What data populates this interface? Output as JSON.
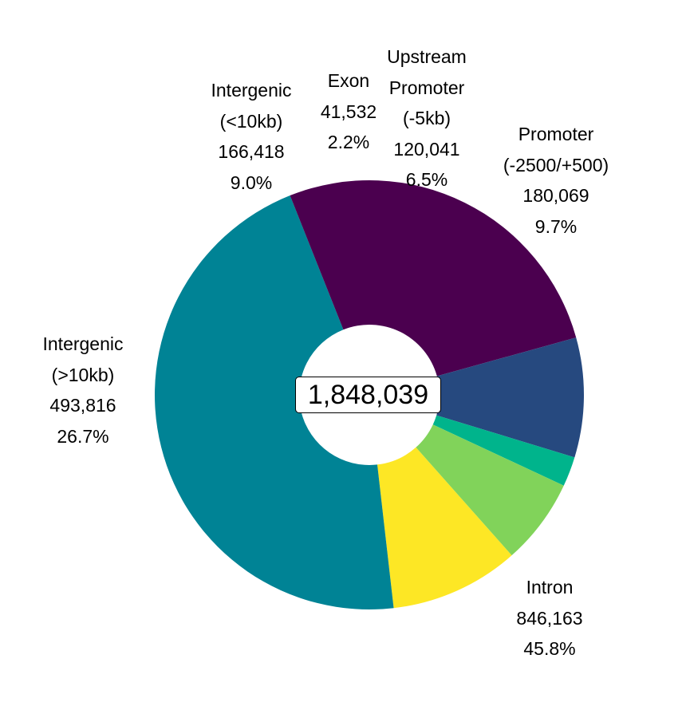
{
  "chart_data": {
    "type": "donut",
    "total_label": "1,848,039",
    "slices": [
      {
        "id": "promoter",
        "lines": [
          "Promoter",
          "(-2500/+500)"
        ],
        "count": "180,069",
        "percent": "9.7%",
        "value": 180069,
        "color": "#fde725"
      },
      {
        "id": "intron",
        "lines": [
          "Intron"
        ],
        "count": "846,163",
        "percent": "45.8%",
        "value": 846163,
        "color": "#008395"
      },
      {
        "id": "intergenic-far",
        "lines": [
          "Intergenic",
          "(>10kb)"
        ],
        "count": "493,816",
        "percent": "26.7%",
        "value": 493816,
        "color": "#4b004f"
      },
      {
        "id": "intergenic-near",
        "lines": [
          "Intergenic",
          "(<10kb)"
        ],
        "count": "166,418",
        "percent": "9.0%",
        "value": 166418,
        "color": "#26497f"
      },
      {
        "id": "exon",
        "lines": [
          "Exon"
        ],
        "count": "41,532",
        "percent": "2.2%",
        "value": 41532,
        "color": "#00b48c"
      },
      {
        "id": "upstream-promoter",
        "lines": [
          "Upstream",
          "Promoter",
          "(-5kb)"
        ],
        "count": "120,041",
        "percent": "6.5%",
        "value": 120041,
        "color": "#81d35a"
      }
    ]
  }
}
